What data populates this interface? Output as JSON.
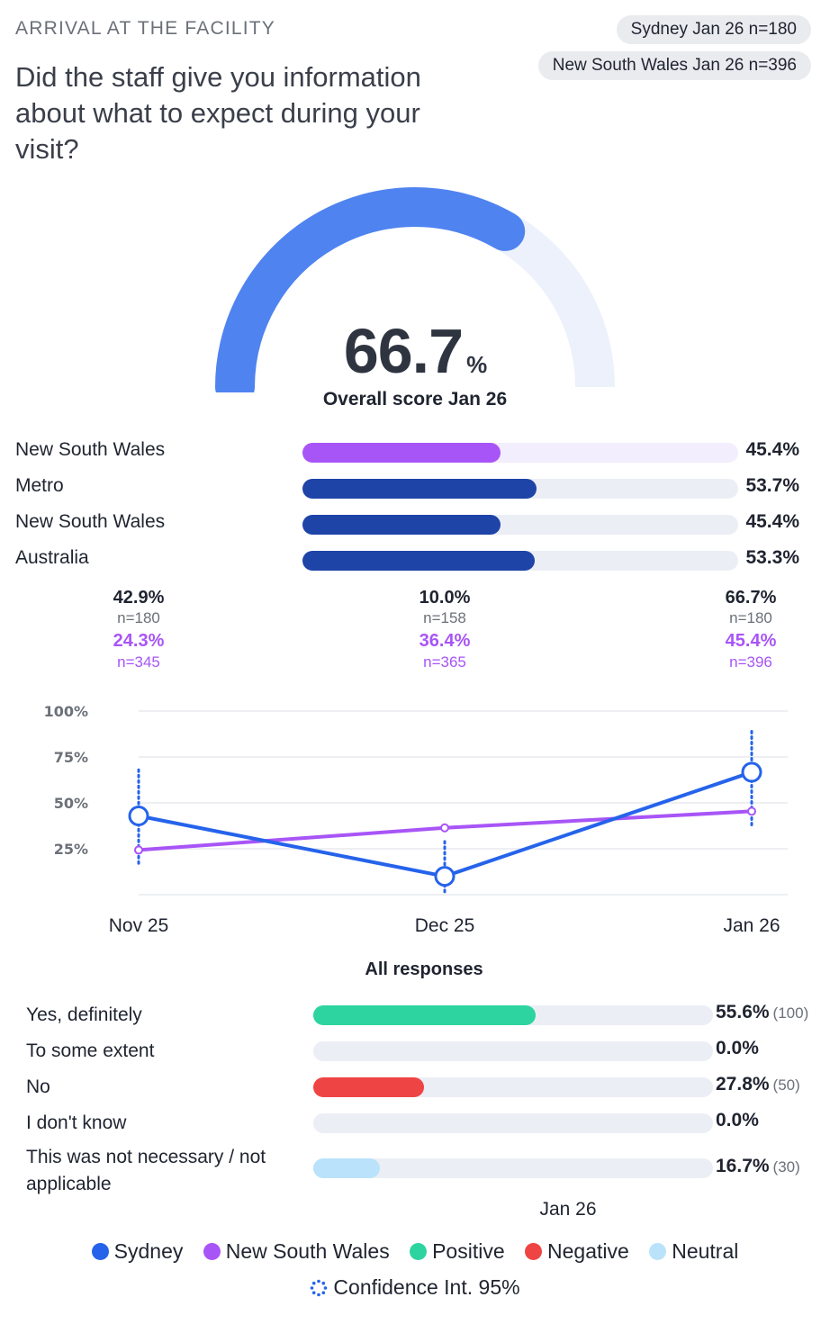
{
  "header": {
    "section": "ARRIVAL AT THE FACILITY",
    "question": "Did the staff give you information about what to expect during your visit?",
    "pill_primary": "Sydney Jan 26 n=180",
    "pill_secondary": "New South Wales Jan 26 n=396"
  },
  "gauge": {
    "value": "66.7",
    "unit": "%",
    "fraction": 0.667,
    "caption": "Overall score Jan 26",
    "fill_color": "#4f83f0",
    "track_color": "#edf1fb"
  },
  "comparisons": [
    {
      "label": "New South Wales",
      "value": "45.4%",
      "fraction": 0.454,
      "color": "#a855f7",
      "track": "#f3eefd"
    },
    {
      "label": "Metro",
      "value": "53.7%",
      "fraction": 0.537,
      "color": "#1e44a8",
      "track": "#eceef5"
    },
    {
      "label": "New South Wales",
      "value": "45.4%",
      "fraction": 0.454,
      "color": "#1e44a8",
      "track": "#eceef5"
    },
    {
      "label": "Australia",
      "value": "53.3%",
      "fraction": 0.533,
      "color": "#1e44a8",
      "track": "#eceef5"
    }
  ],
  "period_stats": [
    {
      "period": "Nov 25",
      "sydney_value": "42.9%",
      "sydney_n": "n=180",
      "nsw_value": "24.3%",
      "nsw_n": "n=345"
    },
    {
      "period": "Dec 25",
      "sydney_value": "10.0%",
      "sydney_n": "n=158",
      "nsw_value": "36.4%",
      "nsw_n": "n=365"
    },
    {
      "period": "Jan 26",
      "sydney_value": "66.7%",
      "sydney_n": "n=180",
      "nsw_value": "45.4%",
      "nsw_n": "n=396"
    }
  ],
  "chart_data": {
    "type": "line",
    "x": [
      "Nov 25",
      "Dec 25",
      "Jan 26"
    ],
    "y_ticks": [
      "25%",
      "50%",
      "75%",
      "100%"
    ],
    "ylim": [
      0,
      100
    ],
    "grid": true,
    "series": [
      {
        "name": "Sydney",
        "values": [
          42.9,
          10.0,
          66.7
        ],
        "color": "#2563eb",
        "ci_low": [
          17,
          0,
          37
        ],
        "ci_high": [
          68,
          29,
          89
        ]
      },
      {
        "name": "New South Wales",
        "values": [
          24.3,
          36.4,
          45.4
        ],
        "color": "#a855f7"
      }
    ]
  },
  "responses": {
    "title": "All responses",
    "period": "Jan 26",
    "items": [
      {
        "label": "Yes, definitely",
        "value": "55.6%",
        "count": "(100)",
        "fraction": 0.556,
        "color": "#2dd4a0"
      },
      {
        "label": "To some extent",
        "value": "0.0%",
        "count": "",
        "fraction": 0.0,
        "color": "#2dd4a0"
      },
      {
        "label": "No",
        "value": "27.8%",
        "count": "(50)",
        "fraction": 0.278,
        "color": "#ef4444"
      },
      {
        "label": "I don't know",
        "value": "0.0%",
        "count": "",
        "fraction": 0.0,
        "color": "#ef4444"
      },
      {
        "label": "This was not necessary / not applicable",
        "value": "16.7%",
        "count": "(30)",
        "fraction": 0.167,
        "color": "#bae3fb"
      }
    ]
  },
  "legend": {
    "items": [
      {
        "label": "Sydney",
        "color": "#2563eb"
      },
      {
        "label": "New South Wales",
        "color": "#a855f7"
      },
      {
        "label": "Positive",
        "color": "#2dd4a0"
      },
      {
        "label": "Negative",
        "color": "#ef4444"
      },
      {
        "label": "Neutral",
        "color": "#bae3fb"
      }
    ],
    "ci_label": "Confidence Int. 95%"
  }
}
